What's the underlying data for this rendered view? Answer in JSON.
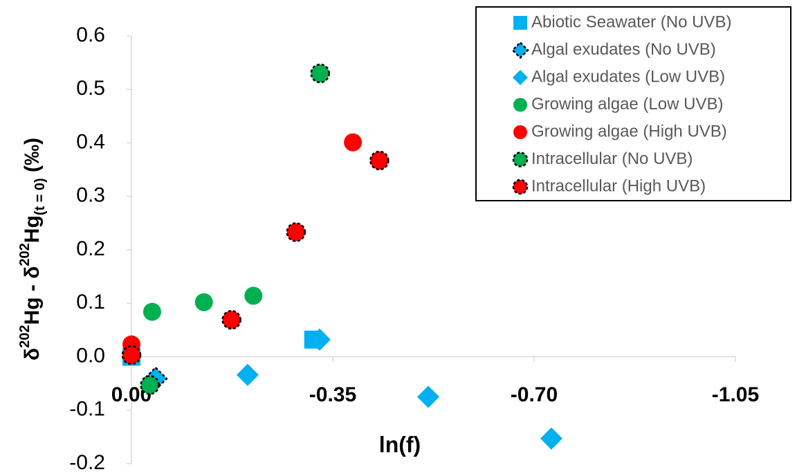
{
  "chart_data": {
    "type": "scatter",
    "xlabel": "ln(f)",
    "ylabel": [
      {
        "text": "δ"
      },
      {
        "text": "202",
        "style": "super"
      },
      {
        "text": "Hg  - δ"
      },
      {
        "text": "202",
        "style": "super"
      },
      {
        "text": "Hg"
      },
      {
        "text": "(t = 0)",
        "style": "sub"
      },
      {
        "text": " (‰)"
      }
    ],
    "xlim": [
      0,
      -1.05
    ],
    "ylim": [
      -0.2,
      0.6
    ],
    "xticks": [
      {
        "value": 0,
        "label": "0.00"
      },
      {
        "value": -0.35,
        "label": "-0.35"
      },
      {
        "value": -0.7,
        "label": "-0.70"
      },
      {
        "value": -1.05,
        "label": "-1.05"
      }
    ],
    "yticks": [
      -0.2,
      -0.1,
      {
        "value": 0,
        "label": "0.0"
      },
      0.1,
      0.2,
      0.3,
      0.4,
      0.5,
      0.6
    ],
    "legend": "top-right",
    "series": [
      {
        "name": "Abiotic Seawater (No UVB)",
        "color": "#00b0f0",
        "marker": "square",
        "edge": "none",
        "x": [
          0,
          -0.316
        ],
        "y": [
          0,
          0.032
        ]
      },
      {
        "name": "Algal exudates (No UVB)",
        "color": "#00b0f0",
        "marker": "diamond",
        "edge": "dashed",
        "x": [
          -0.042
        ],
        "y": [
          -0.041
        ]
      },
      {
        "name": "Algal exudates (Low UVB)",
        "color": "#00b0f0",
        "marker": "diamond",
        "edge": "none",
        "x": [
          -0.327,
          -0.202,
          -0.516,
          -0.73
        ],
        "y": [
          0.032,
          -0.034,
          -0.075,
          -0.153
        ]
      },
      {
        "name": "Growing algae (Low UVB)",
        "color": "#00b050",
        "marker": "circle",
        "edge": "none",
        "x": [
          -0.036,
          -0.126,
          -0.212
        ],
        "y": [
          0.084,
          0.102,
          0.114
        ]
      },
      {
        "name": "Growing algae (High UVB)",
        "color": "#ff0000",
        "marker": "circle",
        "edge": "none",
        "x": [
          0,
          -0.385
        ],
        "y": [
          0.023,
          0.401
        ]
      },
      {
        "name": "Intracellular (No UVB)",
        "color": "#00b050",
        "marker": "circle",
        "edge": "dashed",
        "x": [
          -0.328,
          -0.032
        ],
        "y": [
          0.53,
          -0.053
        ]
      },
      {
        "name": "Intracellular (High UVB)",
        "color": "#ff0000",
        "marker": "circle",
        "edge": "dashed",
        "x": [
          0,
          -0.174,
          -0.286,
          -0.431
        ],
        "y": [
          0.003,
          0.069,
          0.233,
          0.367
        ]
      }
    ]
  }
}
